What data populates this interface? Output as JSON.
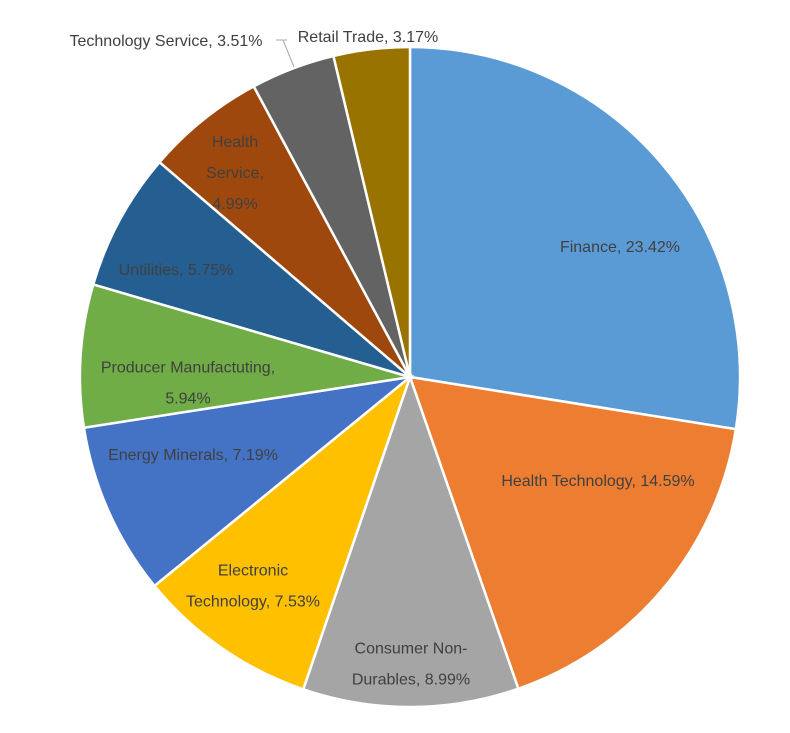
{
  "chart_data": {
    "type": "pie",
    "title": "",
    "slices": [
      {
        "name": "Finance",
        "value": 23.42,
        "color": "#5b9bd5",
        "label_lines": [
          "Finance, 23.42%"
        ]
      },
      {
        "name": "Health Technology",
        "value": 14.59,
        "color": "#ed7d31",
        "label_lines": [
          "Health Technology, 14.59%"
        ]
      },
      {
        "name": "Consumer Non-Durables",
        "value": 8.99,
        "color": "#a5a5a5",
        "label_lines": [
          "Consumer Non-",
          "Durables, 8.99%"
        ]
      },
      {
        "name": "Electronic Technology",
        "value": 7.53,
        "color": "#ffc000",
        "label_lines": [
          "Electronic",
          "Technology, 7.53%"
        ]
      },
      {
        "name": "Energy Minerals",
        "value": 7.19,
        "color": "#4472c4",
        "label_lines": [
          "Energy Minerals, 7.19%"
        ]
      },
      {
        "name": "Producer Manufactuting",
        "value": 5.94,
        "color": "#70ad47",
        "label_lines": [
          "Producer Manufactuting,",
          "5.94%"
        ]
      },
      {
        "name": "Untilities",
        "value": 5.75,
        "color": "#255e91",
        "label_lines": [
          "Untilities, 5.75%"
        ]
      },
      {
        "name": "Health Service",
        "value": 4.99,
        "color": "#9e480e",
        "label_lines": [
          "Health",
          "Service,",
          "4.99%"
        ]
      },
      {
        "name": "Technology Service",
        "value": 3.51,
        "color": "#636363",
        "label_lines": [
          "Technology Service, 3.51%"
        ]
      },
      {
        "name": "Retail Trade",
        "value": 3.17,
        "color": "#997300",
        "label_lines": [
          "Retail Trade, 3.17%"
        ]
      }
    ],
    "start_angle_deg": 0,
    "direction": "clockwise",
    "legend": "none"
  }
}
